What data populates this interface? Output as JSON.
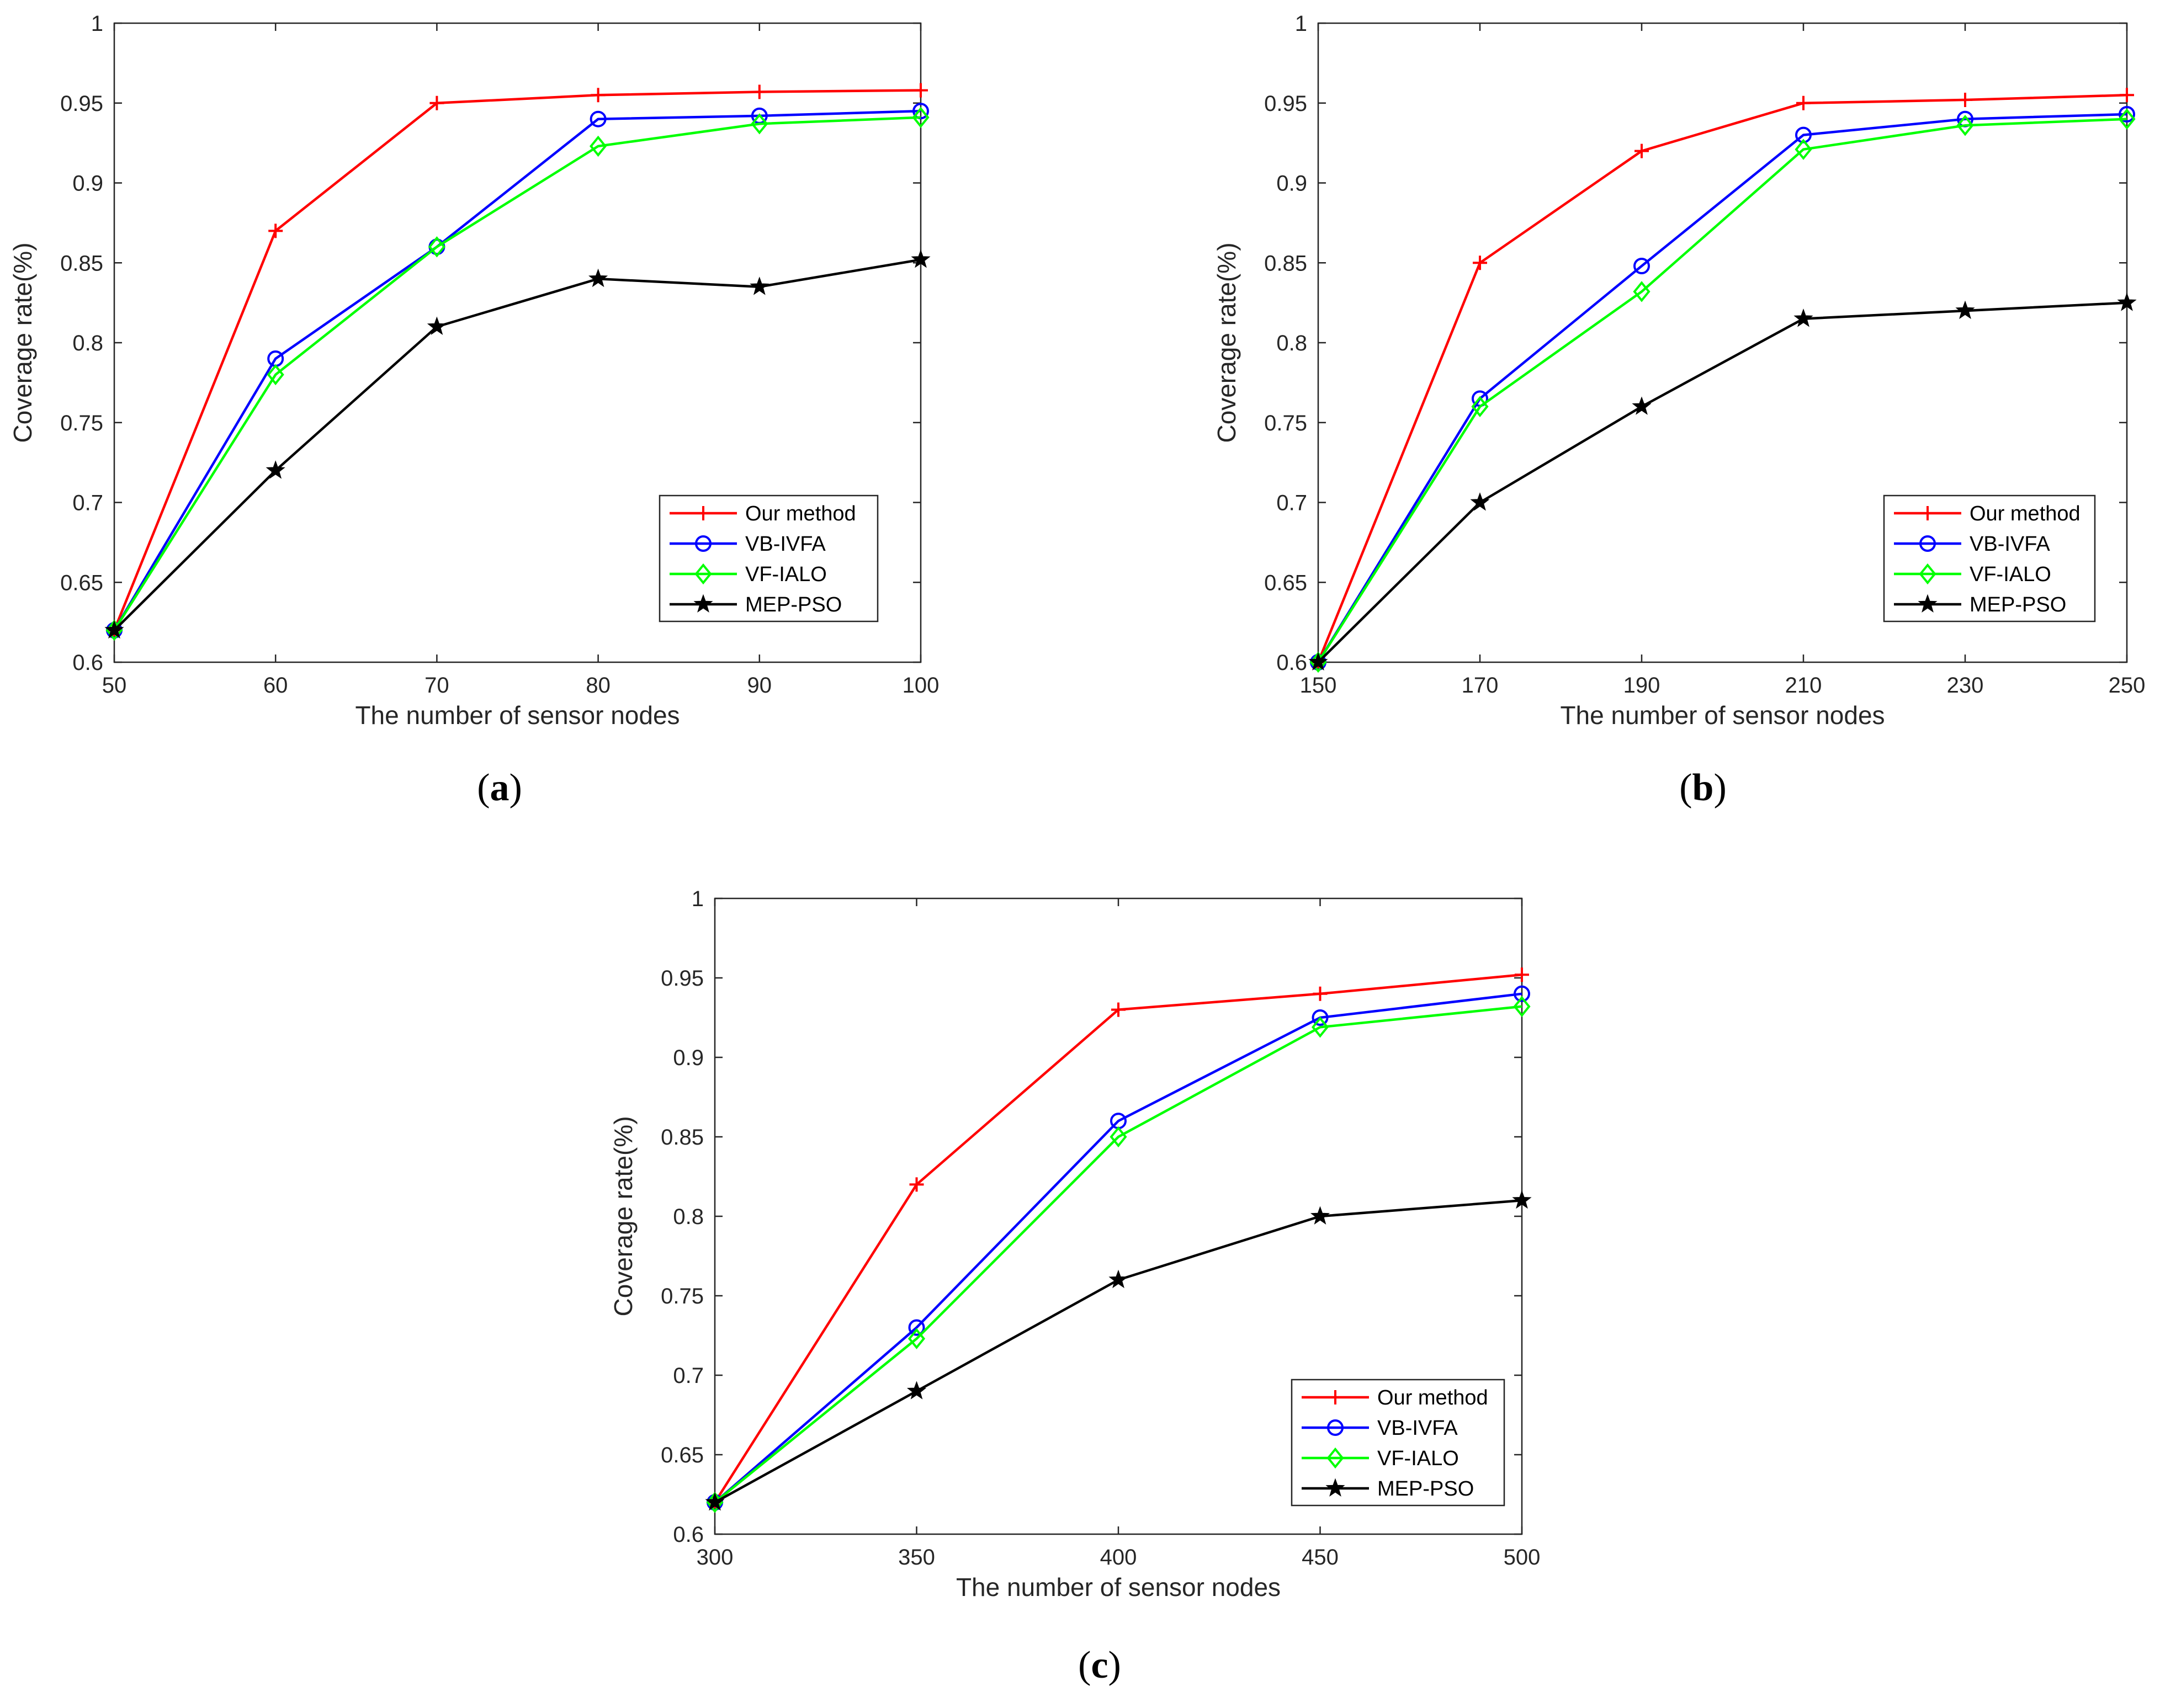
{
  "colors": {
    "series": [
      "#ff0000",
      "#0000ff",
      "#00ff00",
      "#000000"
    ],
    "axis": "#262626",
    "background": "#ffffff"
  },
  "chart_data": [
    {
      "id": "a",
      "type": "line",
      "caption_letter": "a",
      "title": "",
      "xlabel": "The number of sensor nodes",
      "ylabel": "Coverage rate(%)",
      "xlim": [
        50,
        100
      ],
      "ylim": [
        0.6,
        1
      ],
      "xticks": [
        50,
        60,
        70,
        80,
        90,
        100
      ],
      "xtick_labels": [
        "50",
        "60",
        "70",
        "80",
        "90",
        "100"
      ],
      "yticks": [
        0.6,
        0.65,
        0.7,
        0.75,
        0.8,
        0.85,
        0.9,
        0.95,
        1
      ],
      "ytick_labels": [
        "0.6",
        "0.65",
        "0.7",
        "0.75",
        "0.8",
        "0.85",
        "0.9",
        "0.95",
        "1"
      ],
      "grid": false,
      "legend_position": "bottom-right",
      "x": [
        50,
        60,
        70,
        80,
        90,
        100
      ],
      "series": [
        {
          "name": "Our method",
          "marker": "plus",
          "values": [
            0.62,
            0.87,
            0.95,
            0.955,
            0.957,
            0.958
          ]
        },
        {
          "name": "VB-IVFA",
          "marker": "circle",
          "values": [
            0.62,
            0.79,
            0.86,
            0.94,
            0.942,
            0.945
          ]
        },
        {
          "name": "VF-IALO",
          "marker": "diamond",
          "values": [
            0.62,
            0.78,
            0.86,
            0.923,
            0.937,
            0.941
          ]
        },
        {
          "name": "MEP-PSO",
          "marker": "star",
          "values": [
            0.62,
            0.72,
            0.81,
            0.84,
            0.835,
            0.852
          ]
        }
      ]
    },
    {
      "id": "b",
      "type": "line",
      "caption_letter": "b",
      "title": "",
      "xlabel": "The number of sensor nodes",
      "ylabel": "Coverage rate(%)",
      "xlim": [
        150,
        250
      ],
      "ylim": [
        0.6,
        1
      ],
      "xticks": [
        150,
        170,
        190,
        210,
        230,
        250
      ],
      "xtick_labels": [
        "150",
        "170",
        "190",
        "210",
        "230",
        "250"
      ],
      "yticks": [
        0.6,
        0.65,
        0.7,
        0.75,
        0.8,
        0.85,
        0.9,
        0.95,
        1
      ],
      "ytick_labels": [
        "0.6",
        "0.65",
        "0.7",
        "0.75",
        "0.8",
        "0.85",
        "0.9",
        "0.95",
        "1"
      ],
      "grid": false,
      "legend_position": "bottom-right",
      "x": [
        150,
        170,
        190,
        210,
        230,
        250
      ],
      "series": [
        {
          "name": "Our method",
          "marker": "plus",
          "values": [
            0.6,
            0.85,
            0.92,
            0.95,
            0.952,
            0.955
          ]
        },
        {
          "name": "VB-IVFA",
          "marker": "circle",
          "values": [
            0.6,
            0.765,
            0.848,
            0.93,
            0.94,
            0.943
          ]
        },
        {
          "name": "VF-IALO",
          "marker": "diamond",
          "values": [
            0.6,
            0.76,
            0.832,
            0.921,
            0.936,
            0.94
          ]
        },
        {
          "name": "MEP-PSO",
          "marker": "star",
          "values": [
            0.6,
            0.7,
            0.76,
            0.815,
            0.82,
            0.825
          ]
        }
      ]
    },
    {
      "id": "c",
      "type": "line",
      "caption_letter": "c",
      "title": "",
      "xlabel": "The number of sensor nodes",
      "ylabel": "Coverage rate(%)",
      "xlim": [
        300,
        500
      ],
      "ylim": [
        0.6,
        1
      ],
      "xticks": [
        300,
        350,
        400,
        450,
        500
      ],
      "xtick_labels": [
        "300",
        "350",
        "400",
        "450",
        "500"
      ],
      "yticks": [
        0.6,
        0.65,
        0.7,
        0.75,
        0.8,
        0.85,
        0.9,
        0.95,
        1
      ],
      "ytick_labels": [
        "0.6",
        "0.65",
        "0.7",
        "0.75",
        "0.8",
        "0.85",
        "0.9",
        "0.95",
        "1"
      ],
      "grid": false,
      "legend_position": "bottom-right",
      "x": [
        300,
        350,
        400,
        450,
        500
      ],
      "series": [
        {
          "name": "Our method",
          "marker": "plus",
          "values": [
            0.62,
            0.82,
            0.93,
            0.94,
            0.952
          ]
        },
        {
          "name": "VB-IVFA",
          "marker": "circle",
          "values": [
            0.62,
            0.73,
            0.86,
            0.925,
            0.94
          ]
        },
        {
          "name": "VF-IALO",
          "marker": "diamond",
          "values": [
            0.62,
            0.723,
            0.85,
            0.919,
            0.932
          ]
        },
        {
          "name": "MEP-PSO",
          "marker": "star",
          "values": [
            0.62,
            0.69,
            0.76,
            0.8,
            0.81
          ]
        }
      ]
    }
  ]
}
